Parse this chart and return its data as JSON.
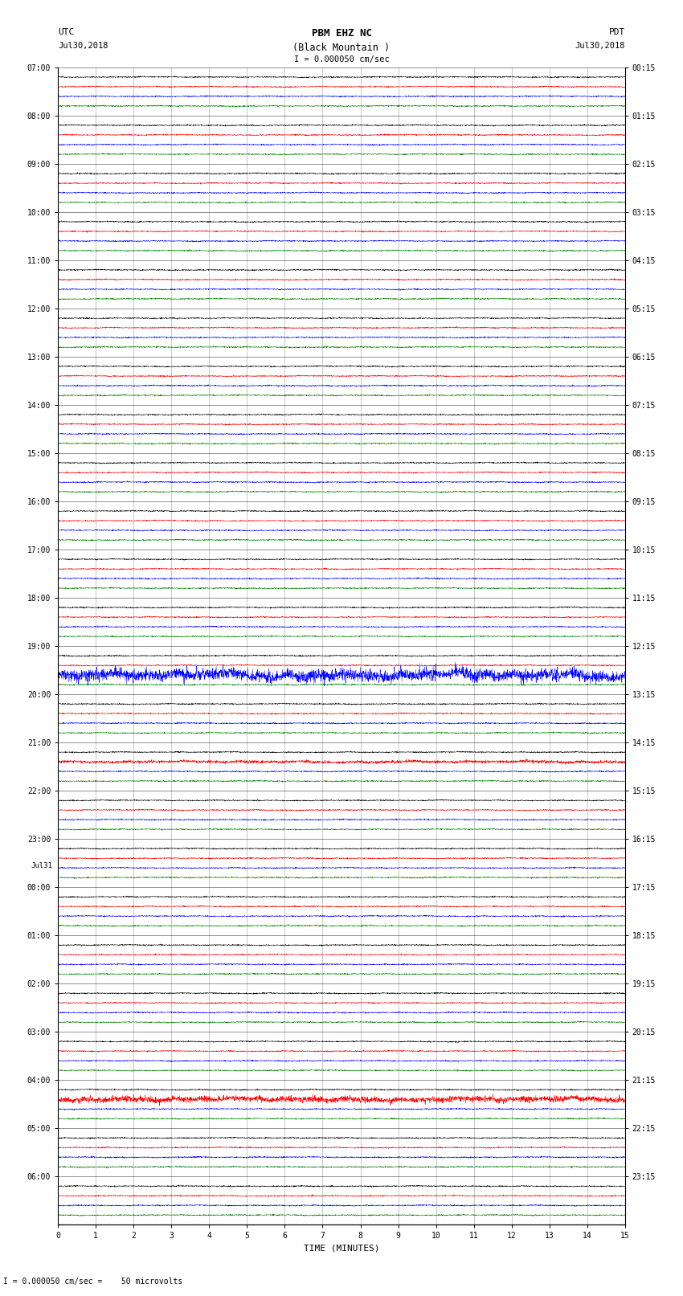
{
  "title_line1": "PBM EHZ NC",
  "title_line2": "(Black Mountain )",
  "scale_text": "I = 0.000050 cm/sec",
  "left_header": "UTC",
  "left_date": "Jul30,2018",
  "right_header": "PDT",
  "right_date": "Jul30,2018",
  "xlabel": "TIME (MINUTES)",
  "bottom_note": "I = 0.000050 cm/sec =    50 microvolts",
  "utc_times": [
    "07:00",
    "08:00",
    "09:00",
    "10:00",
    "11:00",
    "12:00",
    "13:00",
    "14:00",
    "15:00",
    "16:00",
    "17:00",
    "18:00",
    "19:00",
    "20:00",
    "21:00",
    "22:00",
    "23:00",
    "00:00",
    "01:00",
    "02:00",
    "03:00",
    "04:00",
    "05:00",
    "06:00"
  ],
  "pdt_times": [
    "00:15",
    "01:15",
    "02:15",
    "03:15",
    "04:15",
    "05:15",
    "06:15",
    "07:15",
    "08:15",
    "09:15",
    "10:15",
    "11:15",
    "12:15",
    "13:15",
    "14:15",
    "15:15",
    "16:15",
    "17:15",
    "18:15",
    "19:15",
    "20:15",
    "21:15",
    "22:15",
    "23:15"
  ],
  "trace_colors": [
    "black",
    "red",
    "blue",
    "green"
  ],
  "n_rows": 24,
  "traces_per_row": 4,
  "minutes": 15,
  "background_color": "white",
  "grid_color": "#888888",
  "base_noise_amp": 0.012,
  "special_blue_row": 12,
  "special_blue_amp": 0.12,
  "special_red_row": 21,
  "special_red_amp": 0.06,
  "special_red2_row": 14,
  "special_red2_amp": 0.03,
  "jul31_row": 17
}
